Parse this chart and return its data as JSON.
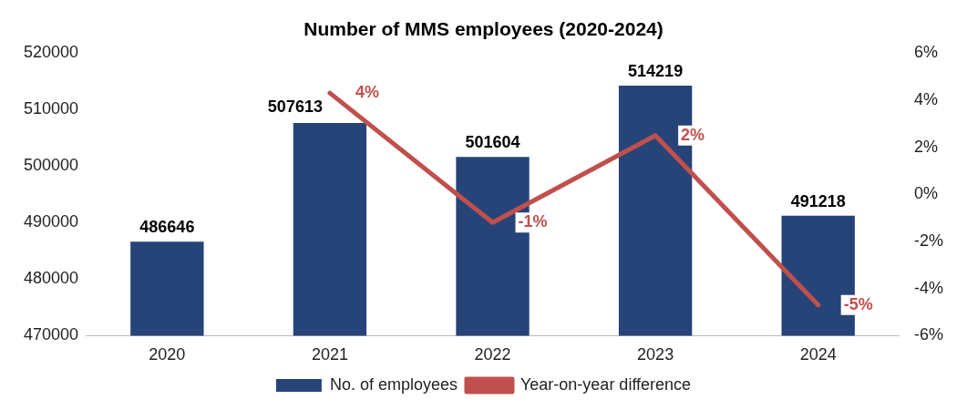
{
  "chart_data": {
    "type": "bar",
    "title": "Number of MMS employees (2020-2024)",
    "categories": [
      "2020",
      "2021",
      "2022",
      "2023",
      "2024"
    ],
    "series": [
      {
        "name": "No. of employees",
        "color": "#264478",
        "values": [
          486646,
          507613,
          501604,
          514219,
          491218
        ],
        "value_labels": [
          "486646",
          "507613",
          "501604",
          "514219",
          "491218"
        ]
      },
      {
        "name": "Year-on-year difference",
        "type": "line",
        "axis": "y2",
        "color": "#c0504d",
        "values": [
          null,
          4.3,
          -1.2,
          2.5,
          -4.7
        ],
        "value_labels": [
          null,
          "4%",
          "-1%",
          "2%",
          "-5%"
        ]
      }
    ],
    "ylim": [
      470000,
      520000
    ],
    "yticks": [
      470000,
      480000,
      490000,
      500000,
      510000,
      520000
    ],
    "y2lim": [
      -6,
      6
    ],
    "y2ticks": [
      {
        "value": -6,
        "label": "-6%"
      },
      {
        "value": -4,
        "label": "-4%"
      },
      {
        "value": -2,
        "label": "-2%"
      },
      {
        "value": 0,
        "label": "0%"
      },
      {
        "value": 2,
        "label": "2%"
      },
      {
        "value": 4,
        "label": "4%"
      },
      {
        "value": 6,
        "label": "6%"
      }
    ],
    "legend": "bottom",
    "grid": false
  }
}
